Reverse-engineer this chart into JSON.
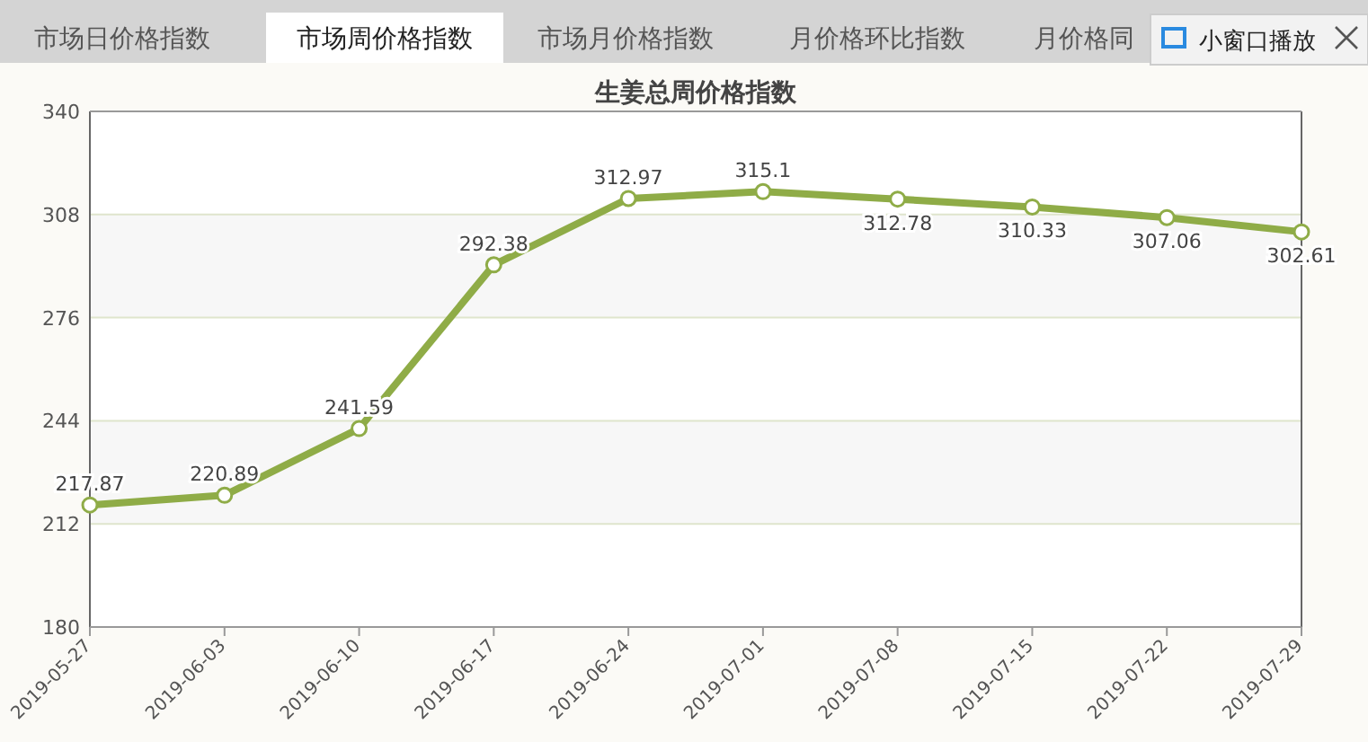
{
  "chart_data": {
    "type": "line",
    "title": "生姜总周价格指数",
    "categories": [
      "2019-05-27",
      "2019-06-03",
      "2019-06-10",
      "2019-06-17",
      "2019-06-24",
      "2019-07-01",
      "2019-07-08",
      "2019-07-15",
      "2019-07-22",
      "2019-07-29"
    ],
    "values": [
      217.87,
      220.89,
      241.59,
      292.38,
      312.97,
      315.1,
      312.78,
      310.33,
      307.06,
      302.61
    ],
    "color": "#8fac47",
    "marker": "circle",
    "data_labels": true,
    "grid": "y",
    "ylim": [
      180,
      340
    ],
    "yticks": [
      180,
      212,
      244,
      276,
      308,
      340
    ],
    "bands": [
      {
        "axis": "y",
        "from": 212,
        "to": 244,
        "color": "#f7f7f7"
      },
      {
        "axis": "y",
        "from": 276,
        "to": 308,
        "color": "#f7f7f7"
      }
    ],
    "annotations": [
      "市场日价格指数",
      "市场周价格指数",
      "市场月价格指数",
      "月价格环比指数",
      "月价格同",
      "小窗口播放"
    ]
  }
}
